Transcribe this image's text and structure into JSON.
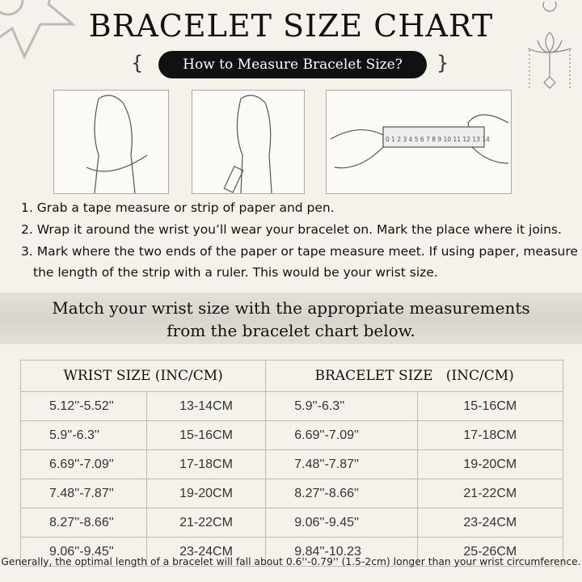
{
  "title": "BRACELET SIZE CHART",
  "subtitle": "How to Measure Bracelet Size?",
  "ruler_numbers": "0 1 2 3 4 5 6 7 8 9 10 11 12 13 14",
  "steps": [
    "1. Grab a tape measure or strip of paper and pen.",
    "2. Wrap it around the wrist you’ll wear your bracelet on. Mark the place where it joins.",
    "3. Mark where the two ends of the paper or tape measure meet. If using paper, measure",
    "the length of the strip with a ruler. This would be your wrist size."
  ],
  "band": {
    "line1": "Match your wrist size with the appropriate measurements",
    "line2": "from the bracelet chart below."
  },
  "table": {
    "headers": [
      "WRIST SIZE (INC/CM)",
      "BRACELET SIZE   (INC/CM)"
    ],
    "rows": [
      [
        "5.12''-5.52''",
        "13-14CM",
        "5.9''-6.3''",
        "15-16CM"
      ],
      [
        "5.9''-6.3''",
        "15-16CM",
        "6.69''-7.09''",
        "17-18CM"
      ],
      [
        "6.69''-7.09''",
        "17-18CM",
        "7.48''-7.87''",
        "19-20CM"
      ],
      [
        "7.48''-7.87''",
        "19-20CM",
        "8.27''-8.66''",
        "21-22CM"
      ],
      [
        "8.27''-8.66''",
        "21-22CM",
        "9.06''-9.45''",
        "23-24CM"
      ],
      [
        "9.06''-9.45''",
        "23-24CM",
        "9.84''-10.23",
        "25-26CM"
      ]
    ]
  },
  "note": "Generally, the optimal length of a bracelet will fall about 0.6''-0.79'' (1.5-2cm) longer than your wrist circumference."
}
